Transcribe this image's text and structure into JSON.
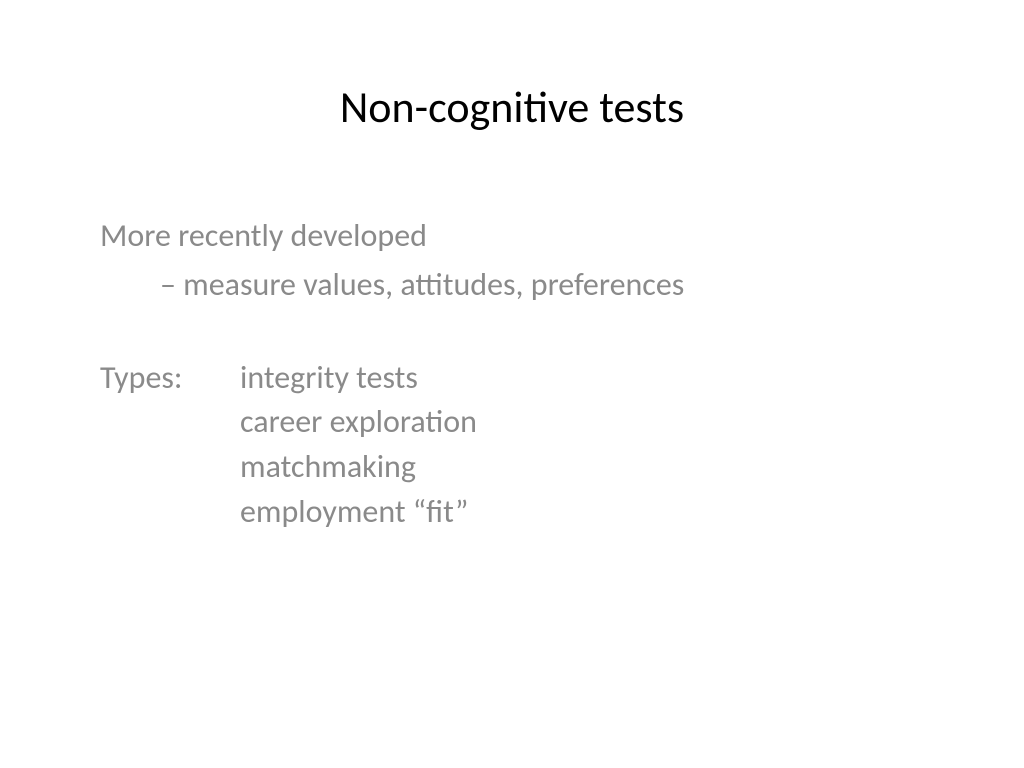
{
  "slide": {
    "title": "Non-cognitive tests",
    "line1": "More recently developed",
    "line2": "– measure values, attitudes, preferences",
    "types_label": "Types:",
    "types_items": [
      "integrity tests",
      "career exploration",
      "matchmaking",
      "employment “fit”"
    ]
  },
  "styles": {
    "background_color": "#ffffff",
    "title_color": "#000000",
    "body_color": "#8a8a8a",
    "title_fontsize": 44,
    "body_fontsize": 32,
    "font_family": "Calibri"
  }
}
